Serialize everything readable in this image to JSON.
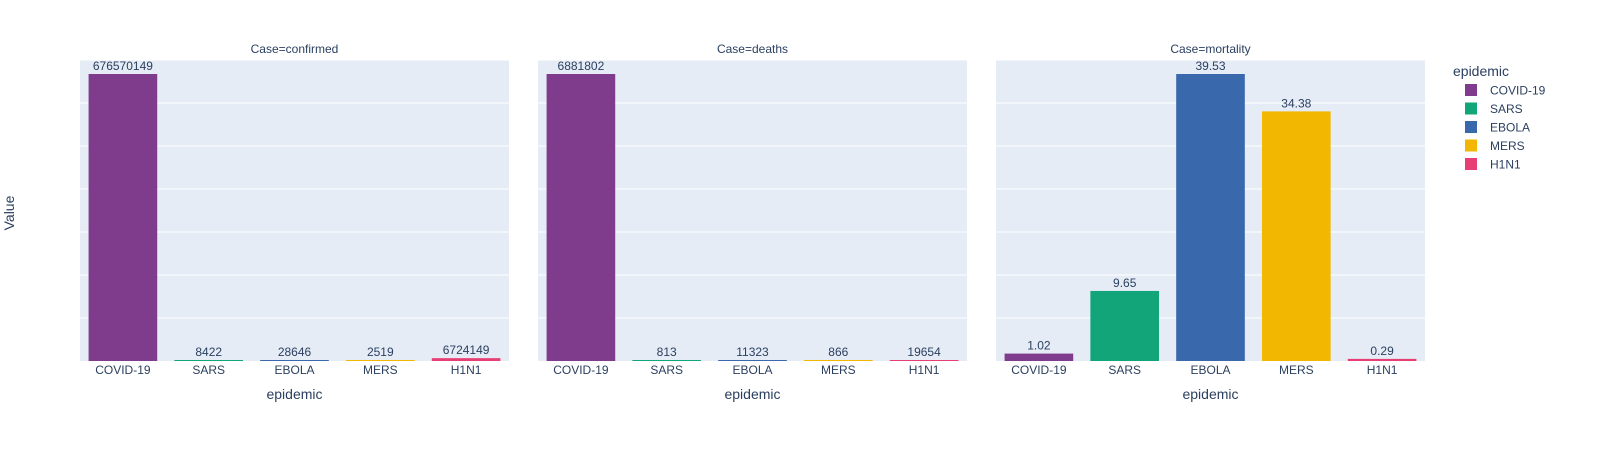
{
  "y_axis_title": "Value",
  "legend": {
    "title": "epidemic",
    "placement": "right",
    "items": [
      {
        "label": "COVID-19",
        "color": "#7F3C8D"
      },
      {
        "label": "SARS",
        "color": "#11A579"
      },
      {
        "label": "EBOLA",
        "color": "#3969AC"
      },
      {
        "label": "MERS",
        "color": "#F2B701"
      },
      {
        "label": "H1N1",
        "color": "#E73F74"
      }
    ]
  },
  "chart_data": [
    {
      "type": "bar",
      "title": "Case=confirmed",
      "xlabel": "epidemic",
      "ylabel": "Value",
      "categories": [
        "COVID-19",
        "SARS",
        "EBOLA",
        "MERS",
        "H1N1"
      ],
      "values": [
        676570149,
        8422,
        28646,
        2519,
        6724149
      ],
      "labels": [
        "676570149",
        "8422",
        "28646",
        "2519",
        "6724149"
      ],
      "ylim": [
        0,
        676570149
      ],
      "grid": true
    },
    {
      "type": "bar",
      "title": "Case=deaths",
      "xlabel": "epidemic",
      "ylabel": "Value",
      "categories": [
        "COVID-19",
        "SARS",
        "EBOLA",
        "MERS",
        "H1N1"
      ],
      "values": [
        6881802,
        813,
        11323,
        866,
        19654
      ],
      "labels": [
        "6881802",
        "813",
        "11323",
        "866",
        "19654"
      ],
      "ylim": [
        0,
        6881802
      ],
      "grid": true
    },
    {
      "type": "bar",
      "title": "Case=mortality",
      "xlabel": "epidemic",
      "ylabel": "Value",
      "categories": [
        "COVID-19",
        "SARS",
        "EBOLA",
        "MERS",
        "H1N1"
      ],
      "values": [
        1.02,
        9.65,
        39.53,
        34.38,
        0.29
      ],
      "labels": [
        "1.02",
        "9.65",
        "39.53",
        "34.38",
        "0.29"
      ],
      "ylim": [
        0,
        39.53
      ],
      "grid": true
    }
  ]
}
